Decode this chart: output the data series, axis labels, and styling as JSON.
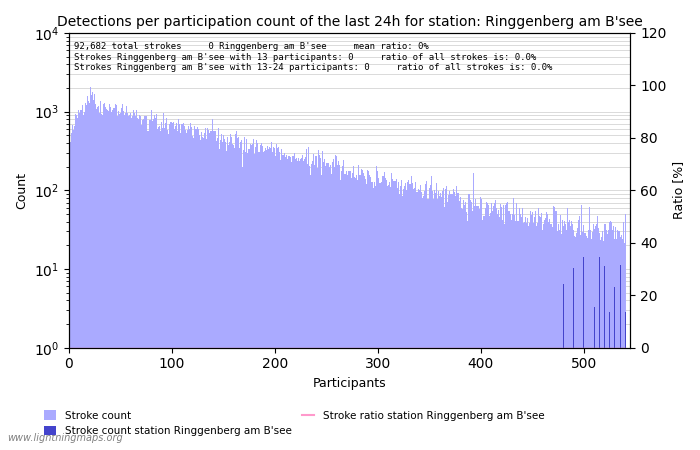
{
  "title": "Detections per participation count of the last 24h for station: Ringgenberg am B'see",
  "annotation_line1": "92,682 total strokes     0 Ringgenberg am B'see     mean ratio: 0%",
  "annotation_line2": "Strokes Ringgenberg am B'see with 13 participants: 0     ratio of all strokes is: 0.0%",
  "annotation_line3": "Strokes Ringgenberg am B'see with 13-24 participants: 0     ratio of all strokes is: 0.0%",
  "xlabel": "Participants",
  "ylabel_left": "Count",
  "ylabel_right": "Ratio [%]",
  "bar_color_main": "#aaaaff",
  "bar_color_station": "#4444cc",
  "line_color_ratio": "#ff99cc",
  "ylim_right": [
    0,
    120
  ],
  "xlim": [
    0,
    545
  ],
  "watermark": "www.lightningmaps.org",
  "legend_entries": [
    "Stroke count",
    "Stroke count station Ringgenberg am B'see",
    "Stroke ratio station Ringgenberg am B'see"
  ],
  "total_strokes": 92682,
  "max_participants": 540
}
